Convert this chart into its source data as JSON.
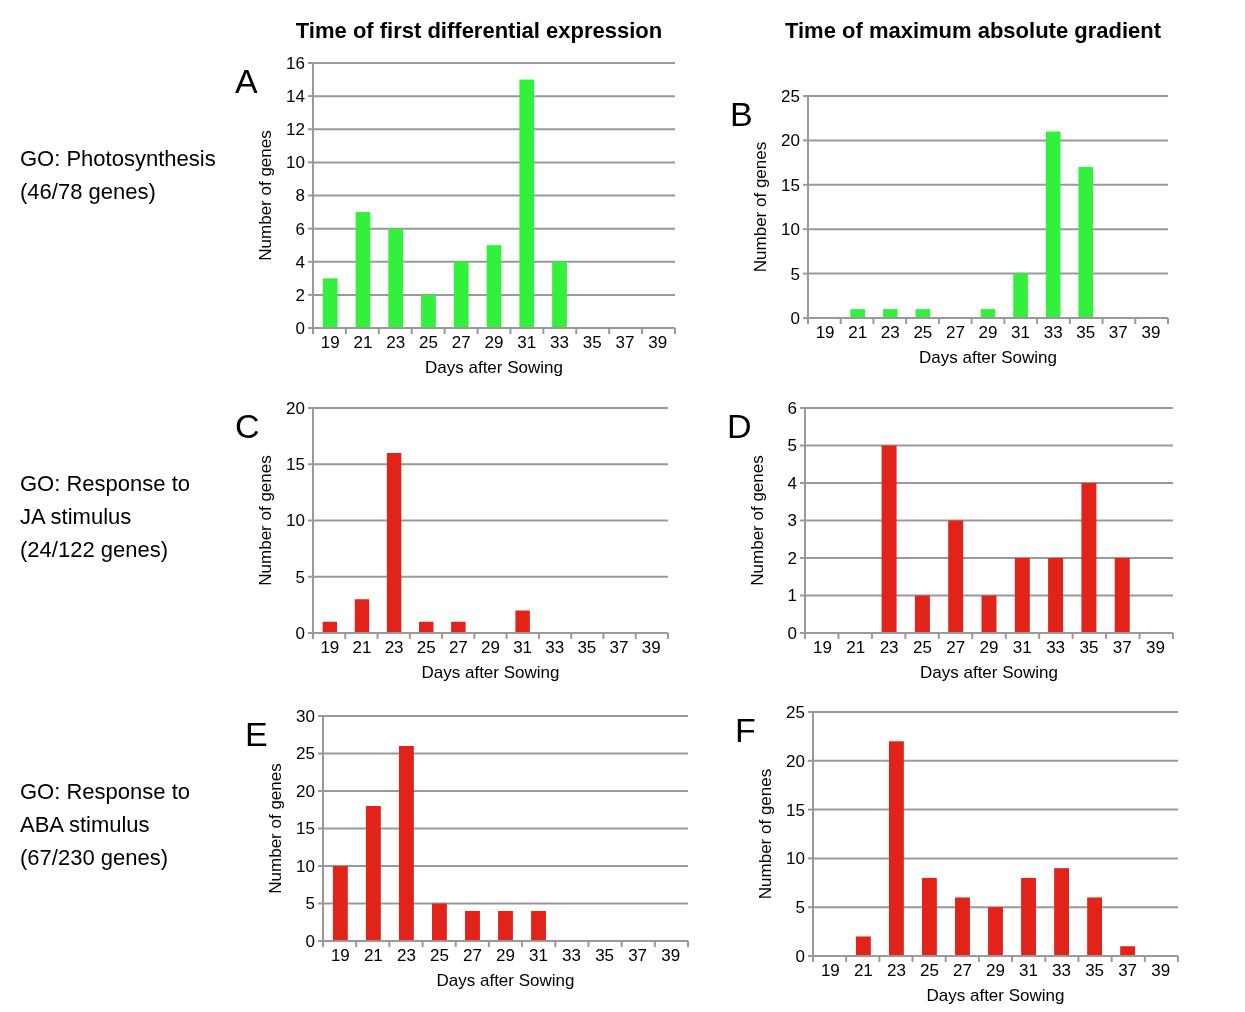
{
  "chart_data": [
    {
      "type": "bar",
      "title": "Time of first differential expression",
      "xlabel": "Days after Sowing",
      "ylabel": "Number of genes",
      "categories": [
        "19",
        "21",
        "23",
        "25",
        "27",
        "29",
        "31",
        "33",
        "35",
        "37",
        "39"
      ],
      "values": [
        3,
        7,
        6,
        2,
        4,
        5,
        15,
        4,
        0,
        0,
        0
      ],
      "color": "#33f03c",
      "ylim": [
        0,
        16
      ],
      "yticks": [
        0,
        2,
        4,
        6,
        8,
        10,
        12,
        14,
        16
      ],
      "grid": "y",
      "annotations": [
        "A",
        "GO: Photosynthesis\n(46/78 genes)"
      ]
    },
    {
      "type": "bar",
      "title": "Time of maximum absolute gradient",
      "xlabel": "Days after Sowing",
      "ylabel": "Number of genes",
      "categories": [
        "19",
        "21",
        "23",
        "25",
        "27",
        "29",
        "31",
        "33",
        "35",
        "37",
        "39"
      ],
      "values": [
        0,
        1,
        1,
        1,
        0,
        1,
        5,
        21,
        17,
        0,
        0
      ],
      "color": "#33f03c",
      "ylim": [
        0,
        25
      ],
      "yticks": [
        0,
        5,
        10,
        15,
        20,
        25
      ],
      "grid": "y",
      "annotations": [
        "B"
      ]
    },
    {
      "type": "bar",
      "xlabel": "Days after Sowing",
      "ylabel": "Number of genes",
      "categories": [
        "19",
        "21",
        "23",
        "25",
        "27",
        "29",
        "31",
        "33",
        "35",
        "37",
        "39"
      ],
      "values": [
        1,
        3,
        16,
        1,
        1,
        0,
        2,
        0,
        0,
        0,
        0
      ],
      "color": "#e2231a",
      "ylim": [
        0,
        20
      ],
      "yticks": [
        0,
        5,
        10,
        15,
        20
      ],
      "grid": "y",
      "annotations": [
        "C",
        "GO: Response to\nJA stimulus\n(24/122 genes)"
      ]
    },
    {
      "type": "bar",
      "xlabel": "Days after Sowing",
      "ylabel": "Number of genes",
      "categories": [
        "19",
        "21",
        "23",
        "25",
        "27",
        "29",
        "31",
        "33",
        "35",
        "37",
        "39"
      ],
      "values": [
        0,
        0,
        5,
        1,
        3,
        1,
        2,
        2,
        4,
        2,
        0
      ],
      "color": "#e2231a",
      "ylim": [
        0,
        6
      ],
      "yticks": [
        0,
        1,
        2,
        3,
        4,
        5,
        6
      ],
      "grid": "y",
      "annotations": [
        "D"
      ]
    },
    {
      "type": "bar",
      "xlabel": "Days after Sowing",
      "ylabel": "Number of genes",
      "categories": [
        "19",
        "21",
        "23",
        "25",
        "27",
        "29",
        "31",
        "33",
        "35",
        "37",
        "39"
      ],
      "values": [
        10,
        18,
        26,
        5,
        4,
        4,
        4,
        0,
        0,
        0,
        0
      ],
      "color": "#e2231a",
      "ylim": [
        0,
        30
      ],
      "yticks": [
        0,
        5,
        10,
        15,
        20,
        25,
        30
      ],
      "grid": "y",
      "annotations": [
        "E",
        "GO: Response to\nABA stimulus\n(67/230 genes)"
      ]
    },
    {
      "type": "bar",
      "xlabel": "Days after Sowing",
      "ylabel": "Number of genes",
      "categories": [
        "19",
        "21",
        "23",
        "25",
        "27",
        "29",
        "31",
        "33",
        "35",
        "37",
        "39"
      ],
      "values": [
        0,
        2,
        22,
        8,
        6,
        5,
        8,
        9,
        6,
        1,
        0
      ],
      "color": "#e2231a",
      "ylim": [
        0,
        25
      ],
      "yticks": [
        0,
        5,
        10,
        15,
        20,
        25
      ],
      "grid": "y",
      "annotations": [
        "F"
      ]
    }
  ]
}
